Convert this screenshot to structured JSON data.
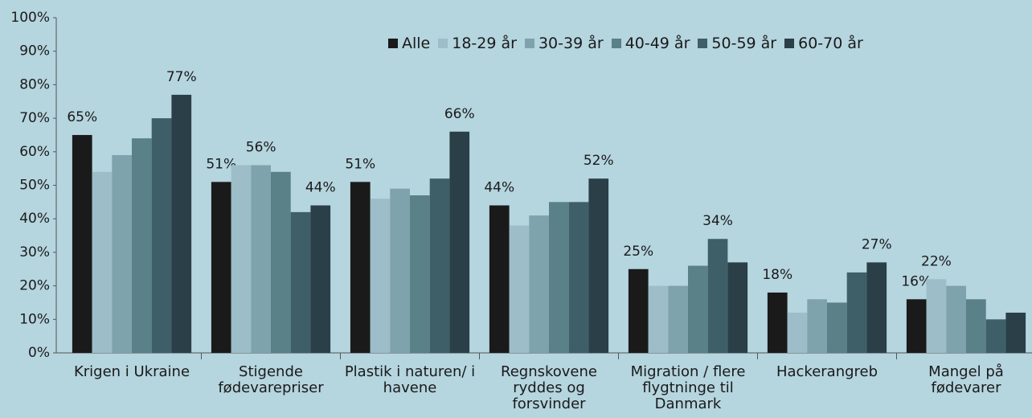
{
  "chart_data": {
    "type": "bar",
    "categories": [
      "Krigen i Ukraine",
      "Stigende fødevarepriser",
      "Plastik i naturen/ i havene",
      "Regnskovene ryddes og forsvinder",
      "Migration / flere flygtninge til Danmark",
      "Hackerangreb",
      "Mangel på fødevarer"
    ],
    "series": [
      {
        "name": "Alle",
        "color": "#1a1a1a",
        "values": [
          65,
          51,
          51,
          44,
          25,
          18,
          16
        ],
        "value_labels": [
          "65%",
          "51%",
          "51%",
          "44%",
          "25%",
          "18%",
          "16%"
        ]
      },
      {
        "name": "18-29 år",
        "color": "#9dbdc8",
        "values": [
          54,
          56,
          46,
          38,
          20,
          12,
          22
        ],
        "value_labels": [
          null,
          null,
          null,
          null,
          null,
          null,
          "22%"
        ]
      },
      {
        "name": "30-39 år",
        "color": "#7fa3ad",
        "values": [
          59,
          56,
          49,
          41,
          20,
          16,
          20
        ],
        "value_labels": [
          null,
          "56%",
          null,
          null,
          null,
          null,
          null
        ]
      },
      {
        "name": "40-49 år",
        "color": "#5a8088",
        "values": [
          64,
          54,
          47,
          45,
          26,
          15,
          16
        ],
        "value_labels": [
          null,
          null,
          null,
          null,
          null,
          null,
          null
        ]
      },
      {
        "name": "50-59 år",
        "color": "#3e5f68",
        "values": [
          70,
          42,
          52,
          45,
          34,
          24,
          10
        ],
        "value_labels": [
          null,
          null,
          null,
          null,
          "34%",
          null,
          null
        ]
      },
      {
        "name": "60-70 år",
        "color": "#2a3f47",
        "values": [
          77,
          44,
          66,
          52,
          27,
          27,
          12
        ],
        "value_labels": [
          "77%",
          "44%",
          "66%",
          "52%",
          null,
          "27%",
          null
        ]
      }
    ],
    "ylim": [
      0,
      100
    ],
    "yticks": [
      {
        "value": 0,
        "label": "0%"
      },
      {
        "value": 10,
        "label": "10%"
      },
      {
        "value": 20,
        "label": "20%"
      },
      {
        "value": 30,
        "label": "30%"
      },
      {
        "value": 40,
        "label": "40%"
      },
      {
        "value": 50,
        "label": "50%"
      },
      {
        "value": 60,
        "label": "60%"
      },
      {
        "value": 70,
        "label": "70%"
      },
      {
        "value": 80,
        "label": "80%"
      },
      {
        "value": 90,
        "label": "90%"
      },
      {
        "value": 100,
        "label": "100%"
      }
    ],
    "grid": false,
    "legend": "top"
  }
}
